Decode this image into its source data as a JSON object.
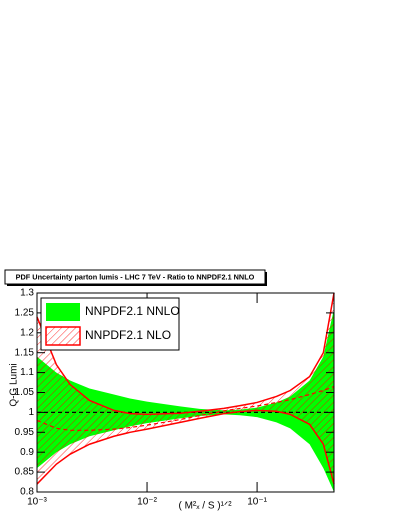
{
  "chart_data": {
    "type": "band",
    "title": "PDF Uncertainty parton lumis - LHC 7 TeV - Ratio to NNPDF2.1 NNLO",
    "x_label": "( M²ₓ / S )¹ᐟ²",
    "y_label": "Q-G Lumi",
    "x": [
      0.001,
      0.0015,
      0.002,
      0.003,
      0.005,
      0.007,
      0.01,
      0.02,
      0.03,
      0.05,
      0.07,
      0.1,
      0.15,
      0.2,
      0.3,
      0.4,
      0.5
    ],
    "series": [
      {
        "name": "NNPDF2.1 NNLO",
        "color": "#00ff00",
        "central_color": "#000000",
        "upper": [
          1.14,
          1.1,
          1.08,
          1.06,
          1.045,
          1.035,
          1.027,
          1.015,
          1.009,
          1.005,
          1.007,
          1.012,
          1.025,
          1.04,
          1.08,
          1.14,
          1.26
        ],
        "lower": [
          0.86,
          0.9,
          0.92,
          0.94,
          0.955,
          0.965,
          0.973,
          0.985,
          0.991,
          0.995,
          0.993,
          0.988,
          0.975,
          0.96,
          0.92,
          0.86,
          0.8
        ],
        "values": [
          1,
          1,
          1,
          1,
          1,
          1,
          1,
          1,
          1,
          1,
          1,
          1,
          1,
          1,
          1,
          1,
          1
        ]
      },
      {
        "name": "NNPDF2.1 NLO",
        "color": "#ff0000",
        "central_color": "#ff0000",
        "upper": [
          1.24,
          1.12,
          1.07,
          1.03,
          1.005,
          0.997,
          0.995,
          0.998,
          1.003,
          1.01,
          1.017,
          1.025,
          1.04,
          1.055,
          1.09,
          1.15,
          1.3
        ],
        "lower": [
          0.82,
          0.87,
          0.895,
          0.92,
          0.94,
          0.95,
          0.958,
          0.975,
          0.985,
          0.997,
          1.002,
          1.005,
          1.003,
          0.995,
          0.97,
          0.92,
          0.82
        ],
        "values": [
          0.98,
          0.96,
          0.955,
          0.955,
          0.958,
          0.962,
          0.968,
          0.982,
          0.992,
          1.004,
          1.01,
          1.016,
          1.025,
          1.032,
          1.045,
          1.055,
          1.065
        ]
      }
    ],
    "xlim": [
      0.001,
      0.5
    ],
    "ylim": [
      0.8,
      1.3
    ],
    "x_log": true,
    "xticks": [
      {
        "value": 0.001,
        "label": "10⁻³"
      },
      {
        "value": 0.01,
        "label": "10⁻²"
      },
      {
        "value": 0.1,
        "label": "10⁻¹"
      }
    ],
    "yticks": [
      0.8,
      0.85,
      0.9,
      0.95,
      1,
      1.05,
      1.1,
      1.15,
      1.2,
      1.25,
      1.3
    ],
    "legend": "upper left"
  }
}
